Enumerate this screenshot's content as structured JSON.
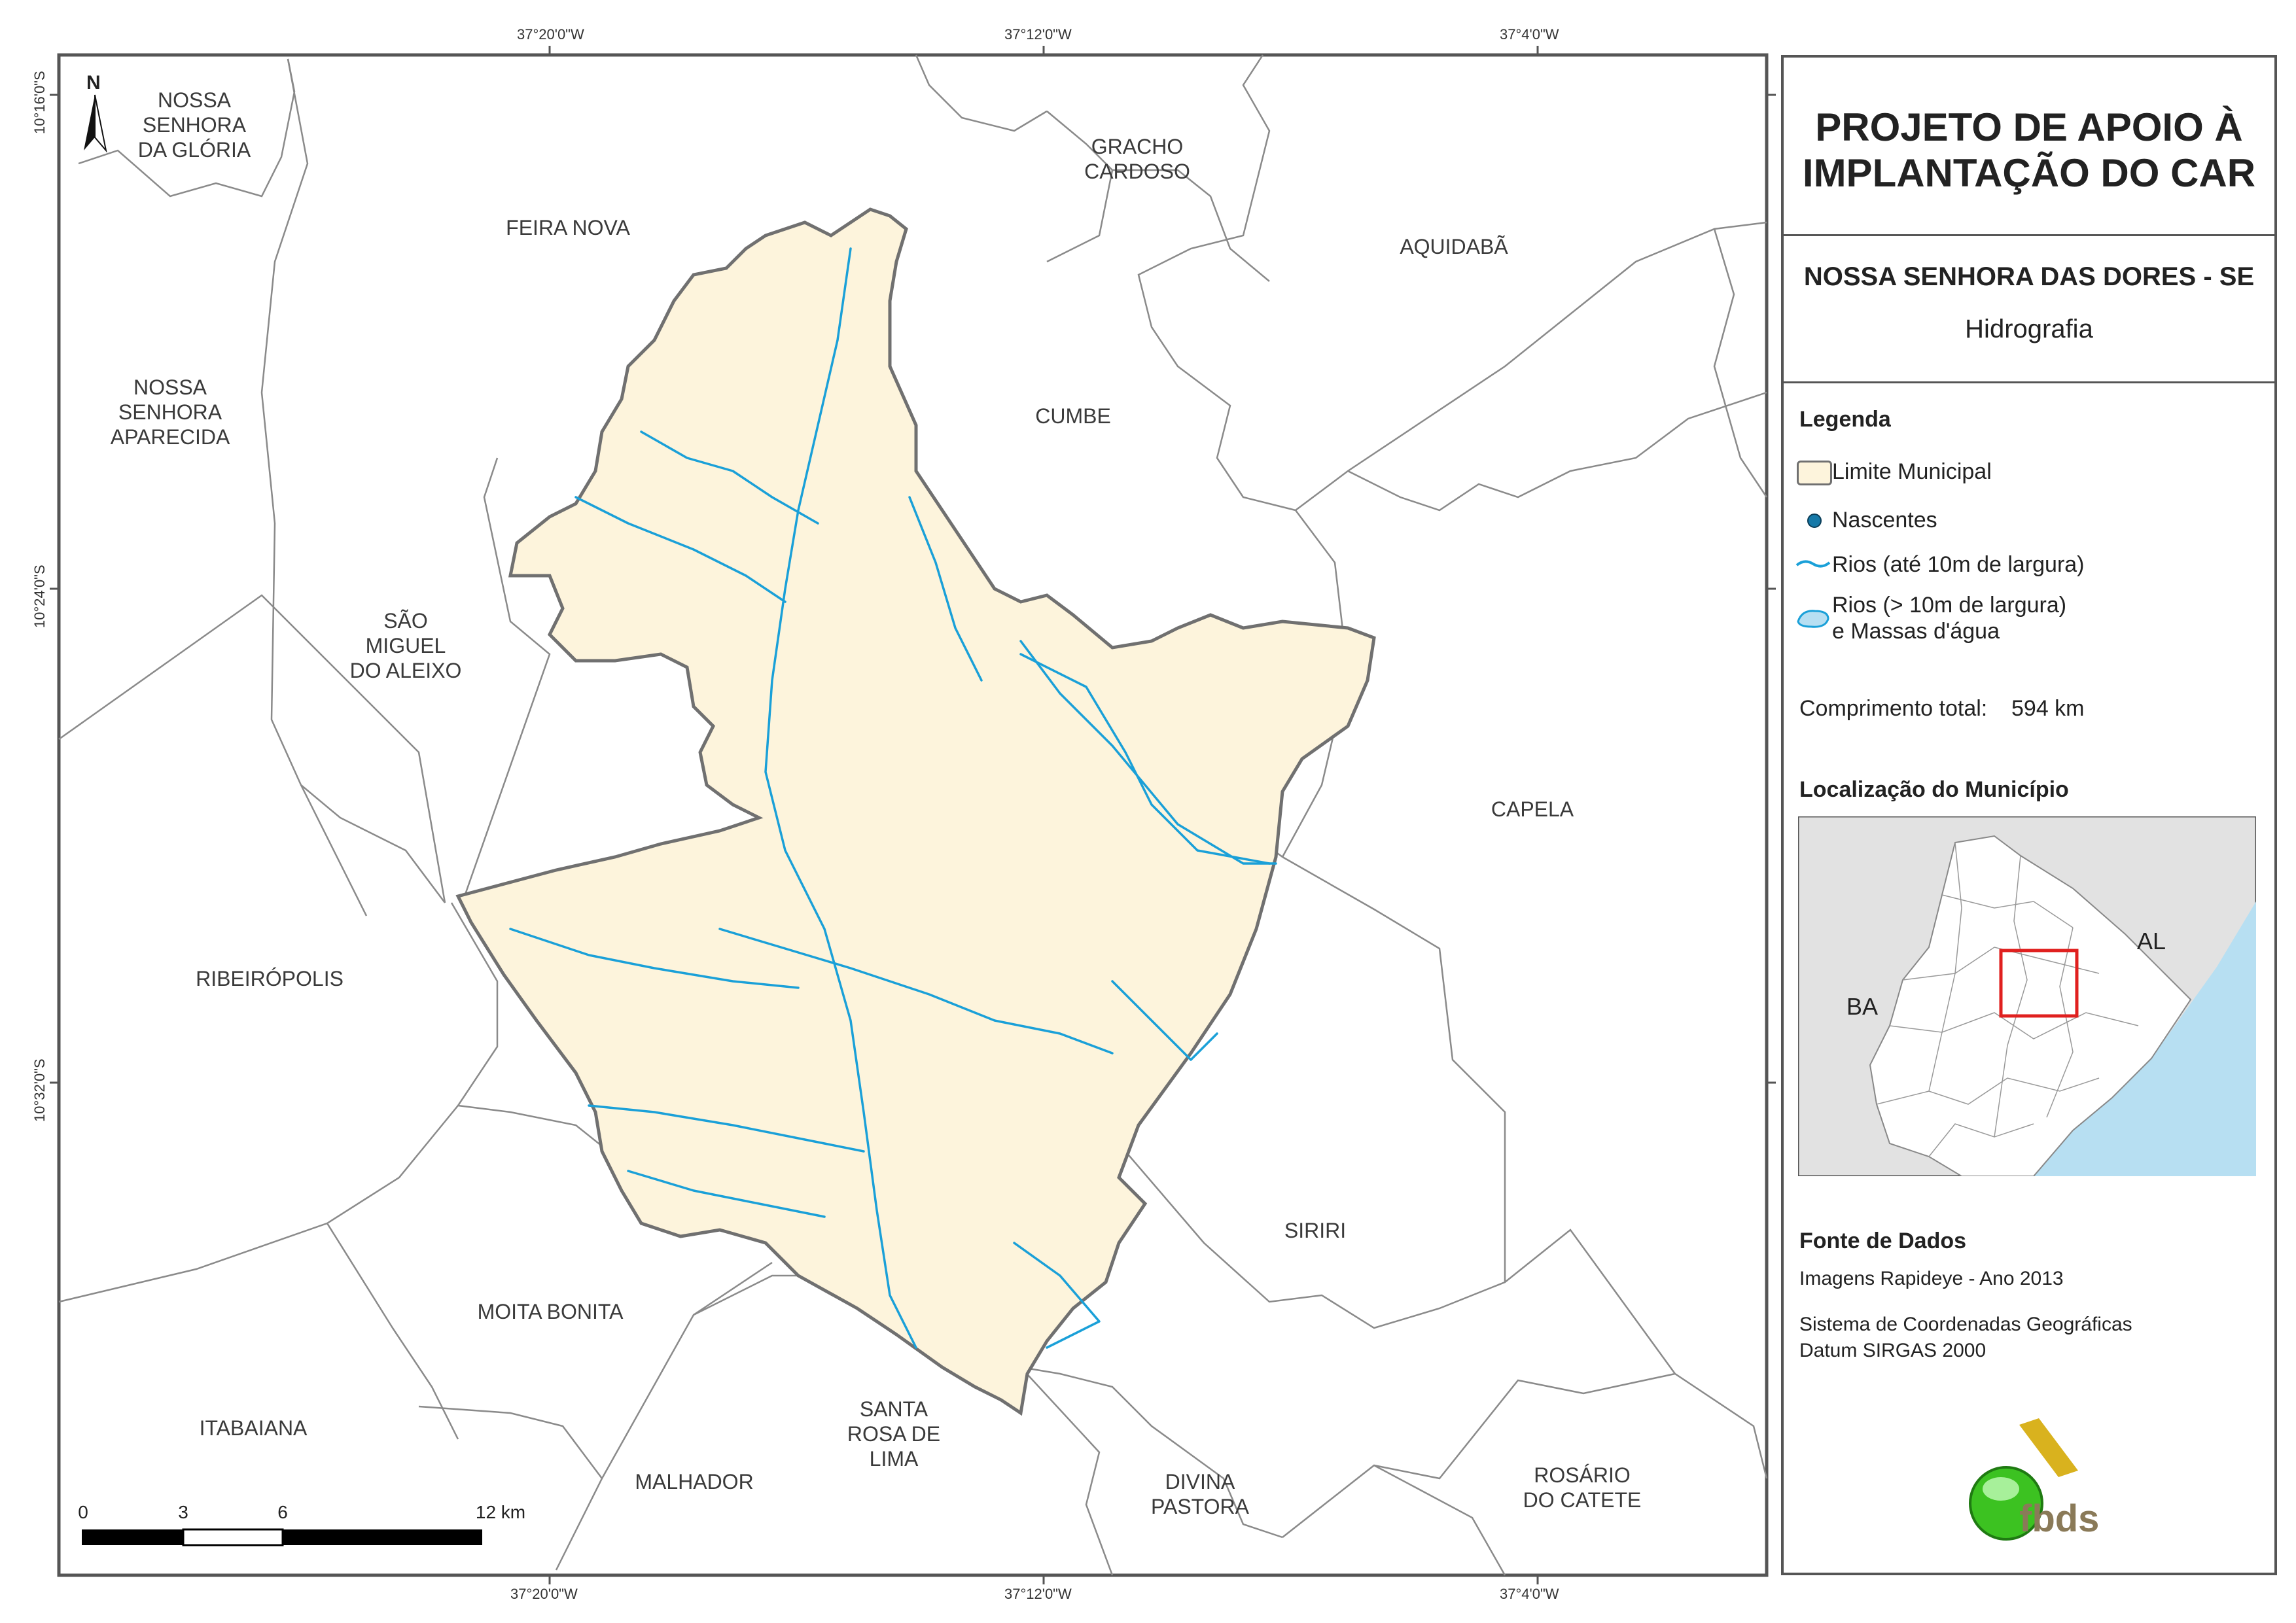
{
  "title": {
    "line1": "PROJETO DE APOIO À",
    "line2": "IMPLANTAÇÃO DO CAR"
  },
  "subtitle": {
    "municipality": "NOSSA SENHORA DAS DORES - SE",
    "theme": "Hidrografia"
  },
  "legend": {
    "heading": "Legenda",
    "items": {
      "limite": "Limite Municipal",
      "nascentes": "Nascentes",
      "rios_small": "Rios (até 10m de largura)",
      "rios_large_1": "Rios (> 10m de largura)",
      "rios_large_2": "e Massas d'água"
    },
    "total_label": "Comprimento total:",
    "total_value": "594 km"
  },
  "location": {
    "heading": "Localização do Município",
    "state_left": "BA",
    "state_right": "AL"
  },
  "sources": {
    "heading": "Fonte de Dados",
    "line1": "Imagens Rapideye - Ano 2013",
    "line2": "Sistema de Coordenadas Geográficas",
    "line3": "Datum SIRGAS 2000"
  },
  "logo_text": "fbds",
  "north_label": "N",
  "coords": {
    "top": [
      "37°20'0\"W",
      "37°12'0\"W",
      "37°4'0\"W"
    ],
    "bottom": [
      "37°20'0\"W",
      "37°12'0\"W",
      "37°4'0\"W"
    ],
    "left": [
      "10°16'0\"S",
      "10°24'0\"S",
      "10°32'0\"S"
    ]
  },
  "scale": {
    "labels": [
      "0",
      "3",
      "6",
      "12 km"
    ]
  },
  "municipalities": {
    "nsg_1": "NOSSA",
    "nsg_2": "SENHORA",
    "nsg_3": "DA GLÓRIA",
    "feira": "FEIRA NOVA",
    "gracho_1": "GRACHO",
    "gracho_2": "CARDOSO",
    "aquidaba": "AQUIDABÃ",
    "nsa_1": "NOSSA",
    "nsa_2": "SENHORA",
    "nsa_3": "APARECIDA",
    "cumbe": "CUMBE",
    "sma_1": "SÃO",
    "sma_2": "MIGUEL",
    "sma_3": "DO ALEIXO",
    "capela": "CAPELA",
    "ribeiropolis": "RIBEIRÓPOLIS",
    "siriri": "SIRIRI",
    "moita": "MOITA BONITA",
    "itabaiana": "ITABAIANA",
    "malhador": "MALHADOR",
    "srl_1": "SANTA",
    "srl_2": "ROSA DE",
    "srl_3": "LIMA",
    "dp_1": "DIVINA",
    "dp_2": "PASTORA",
    "rc_1": "ROSÁRIO",
    "rc_2": "DO CATETE"
  },
  "colors": {
    "municipality_fill": "#fdf4dc",
    "boundary": "#707070",
    "river": "#1aa0d8",
    "spring_fill": "#1679a8",
    "sea": "#b7dff2",
    "highlight": "#e0201f",
    "logo_green": "#3cc221",
    "logo_gold": "#d9b21e"
  }
}
